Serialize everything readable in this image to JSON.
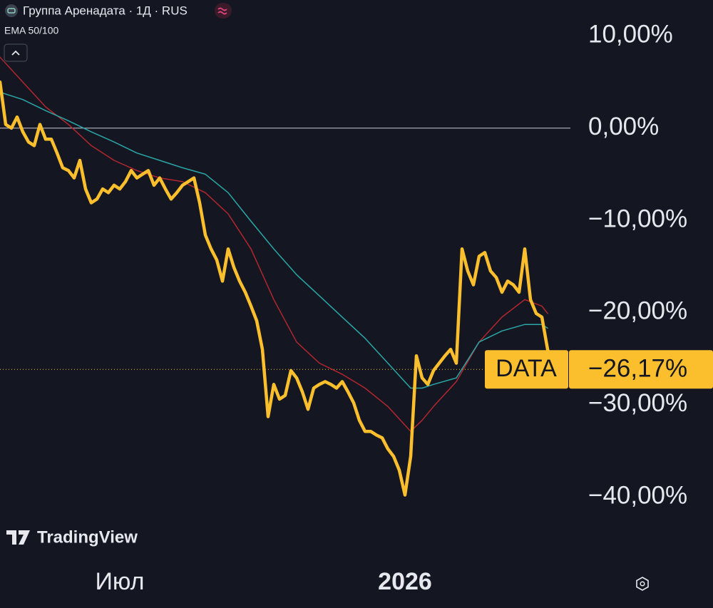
{
  "chart_data": {
    "type": "line",
    "title": "Группа Аренадата · 1Д · RUS",
    "subtitle": "EMA 50/100",
    "watermark": "TradingView",
    "xlim": [
      0,
      100
    ],
    "xticks": [
      {
        "value": 21,
        "label": "Июл"
      },
      {
        "value": 71,
        "label": "2026"
      }
    ],
    "ylim": [
      -46.8,
      13.9
    ],
    "yticks": [
      {
        "value": 10,
        "label": "10,00%"
      },
      {
        "value": 0,
        "label": "0,00%"
      },
      {
        "value": -10,
        "label": "−10,00%"
      },
      {
        "value": -20,
        "label": "−20,00%"
      },
      {
        "value": -30,
        "label": "−30,00%"
      },
      {
        "value": -40,
        "label": "−40,00%"
      }
    ],
    "baseline": 0,
    "current": {
      "value": -26.17,
      "label": "−26,17%",
      "badge": "DATA"
    },
    "series": [
      {
        "color": "#fbbf2d",
        "width": 4.5,
        "x": [
          0,
          1,
          2,
          3,
          4,
          5,
          6,
          7,
          8,
          9,
          10,
          11,
          12,
          13,
          14,
          15,
          16,
          17,
          18,
          19,
          20,
          21,
          22,
          23,
          24,
          25,
          26,
          27,
          28,
          29,
          30,
          31,
          32,
          33,
          34,
          35,
          36,
          37,
          38,
          39,
          40,
          41,
          42,
          43,
          44,
          45,
          46,
          47,
          48,
          49,
          50,
          51,
          52,
          53,
          54,
          55,
          56,
          57,
          58,
          59,
          60,
          61,
          62,
          63,
          64,
          65,
          66,
          67,
          68,
          69,
          70,
          71,
          72,
          73,
          74,
          75,
          76,
          77,
          78,
          79,
          80,
          81,
          82,
          83,
          84,
          85,
          86,
          87,
          88,
          89,
          90,
          91,
          92,
          93,
          94,
          95,
          96,
          97
        ],
        "values": [
          5.0,
          0.4,
          0,
          1.2,
          -0.4,
          -1.5,
          -1.9,
          0.4,
          -1.2,
          -1.2,
          -2.7,
          -4.3,
          -4.6,
          -5.4,
          -3.5,
          -6.6,
          -8.1,
          -7.7,
          -6.6,
          -7.0,
          -6.2,
          -6.6,
          -5.8,
          -4.6,
          -5.4,
          -5.0,
          -4.6,
          -6.2,
          -5.4,
          -6.6,
          -7.7,
          -7.0,
          -6.2,
          -5.8,
          -5.4,
          -8.1,
          -11.6,
          -13.1,
          -14.3,
          -16.6,
          -13.1,
          -15.1,
          -16.6,
          -17.8,
          -19.3,
          -20.9,
          -24.0,
          -31.3,
          -27.8,
          -29.4,
          -29.0,
          -26.3,
          -27.1,
          -28.6,
          -30.5,
          -28.2,
          -27.8,
          -27.5,
          -27.8,
          -28.2,
          -27.5,
          -28.6,
          -29.8,
          -31.7,
          -32.9,
          -32.9,
          -33.3,
          -33.6,
          -34.8,
          -35.6,
          -37.1,
          -39.8,
          -35.6,
          -24.7,
          -27.1,
          -27.8,
          -26.3,
          -25.5,
          -24.7,
          -24.0,
          -25.5,
          -13.1,
          -15.5,
          -17.0,
          -13.9,
          -13.5,
          -15.5,
          -16.2,
          -17.8,
          -16.6,
          -17.0,
          -17.8,
          -13.1,
          -18.6,
          -20.1,
          -20.5,
          -24.0,
          -26.17
        ]
      },
      {
        "color": "#2aa6a6",
        "width": 1.5,
        "x": [
          0,
          4,
          8,
          12,
          16,
          20,
          24,
          28,
          32,
          36,
          40,
          44,
          48,
          52,
          56,
          60,
          64,
          68,
          72,
          74,
          76,
          80,
          84,
          88,
          92,
          95,
          96
        ],
        "values": [
          3.9,
          3.1,
          1.9,
          0.8,
          -0.4,
          -1.5,
          -2.7,
          -3.5,
          -4.3,
          -5.0,
          -7.0,
          -10.1,
          -13.1,
          -15.9,
          -18.2,
          -20.5,
          -22.8,
          -25.5,
          -28.2,
          -28.2,
          -27.8,
          -27.1,
          -23.2,
          -22.0,
          -21.3,
          -21.3,
          -21.7
        ]
      },
      {
        "color": "#b3262e",
        "width": 1.5,
        "x": [
          0,
          4,
          8,
          12,
          16,
          20,
          24,
          28,
          32,
          36,
          40,
          44,
          48,
          52,
          56,
          60,
          64,
          68,
          72,
          74,
          76,
          80,
          84,
          88,
          92,
          95,
          96
        ],
        "values": [
          7.7,
          5.0,
          2.3,
          0.4,
          -1.9,
          -3.5,
          -4.6,
          -5.4,
          -5.8,
          -7.0,
          -9.3,
          -13.1,
          -18.6,
          -23.2,
          -25.5,
          -26.7,
          -28.2,
          -30.2,
          -32.9,
          -31.7,
          -30.2,
          -27.5,
          -23.2,
          -20.5,
          -18.6,
          -19.3,
          -20.1
        ]
      }
    ]
  }
}
